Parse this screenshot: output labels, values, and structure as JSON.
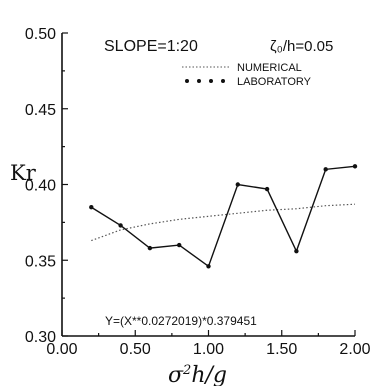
{
  "chart_data": {
    "type": "line",
    "xlabel": "σ²h/g",
    "ylabel": "Kr",
    "xlim": [
      0.0,
      2.0
    ],
    "ylim": [
      0.3,
      0.5
    ],
    "x_ticks": [
      "0.00",
      "0.50",
      "1.00",
      "1.50",
      "2.00"
    ],
    "y_ticks": [
      "0.30",
      "0.35",
      "0.40",
      "0.45",
      "0.50"
    ],
    "grid": false,
    "legend_placement": "top-right",
    "annotations": {
      "slope": "SLOPE=1:20",
      "zeta": "ζ₀/h=0.05",
      "formula": "Y=(X**0.0272019)*0.379451"
    },
    "series": [
      {
        "name": "NUMERICAL",
        "style": "dotted",
        "x": [
          0.2,
          0.4,
          0.6,
          0.8,
          1.0,
          1.2,
          1.4,
          1.6,
          1.8,
          2.0
        ],
        "y": [
          0.363,
          0.37,
          0.374,
          0.377,
          0.379,
          0.381,
          0.383,
          0.384,
          0.386,
          0.387
        ]
      },
      {
        "name": "LABORATORY",
        "style": "points-joined",
        "x": [
          0.2,
          0.4,
          0.6,
          0.8,
          1.0,
          1.2,
          1.4,
          1.6,
          1.8,
          2.0
        ],
        "y": [
          0.385,
          0.373,
          0.358,
          0.36,
          0.346,
          0.4,
          0.397,
          0.356,
          0.41,
          0.412
        ]
      }
    ]
  }
}
